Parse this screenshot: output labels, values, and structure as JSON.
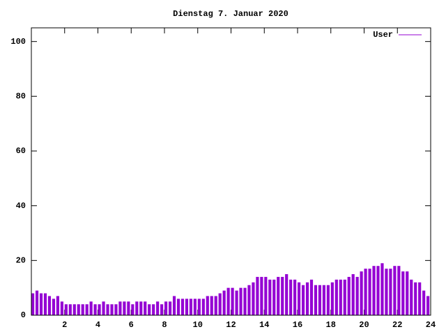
{
  "chart_data": {
    "type": "bar",
    "title": "Dienstag 7. Januar 2020",
    "x": [
      0,
      0.25,
      0.5,
      0.75,
      1,
      1.25,
      1.5,
      1.75,
      2,
      2.25,
      2.5,
      2.75,
      3,
      3.25,
      3.5,
      3.75,
      4,
      4.25,
      4.5,
      4.75,
      5,
      5.25,
      5.5,
      5.75,
      6,
      6.25,
      6.5,
      6.75,
      7,
      7.25,
      7.5,
      7.75,
      8,
      8.25,
      8.5,
      8.75,
      9,
      9.25,
      9.5,
      9.75,
      10,
      10.25,
      10.5,
      10.75,
      11,
      11.25,
      11.5,
      11.75,
      12,
      12.25,
      12.5,
      12.75,
      13,
      13.25,
      13.5,
      13.75,
      14,
      14.25,
      14.5,
      14.75,
      15,
      15.25,
      15.5,
      15.75,
      16,
      16.25,
      16.5,
      16.75,
      17,
      17.25,
      17.5,
      17.75,
      18,
      18.25,
      18.5,
      18.75,
      19,
      19.25,
      19.5,
      19.75,
      20,
      20.25,
      20.5,
      20.75,
      21,
      21.25,
      21.5,
      21.75,
      22,
      22.25,
      22.5,
      22.75,
      23,
      23.25,
      23.5,
      23.75
    ],
    "series": [
      {
        "name": "User",
        "color": "#9400d3",
        "values": [
          8,
          9,
          8,
          8,
          7,
          6,
          7,
          5,
          4,
          4,
          4,
          4,
          4,
          4,
          5,
          4,
          4,
          5,
          4,
          4,
          4,
          5,
          5,
          5,
          4,
          5,
          5,
          5,
          4,
          4,
          5,
          4,
          5,
          5,
          7,
          6,
          6,
          6,
          6,
          6,
          6,
          6,
          7,
          7,
          7,
          8,
          9,
          10,
          10,
          9,
          10,
          10,
          11,
          12,
          14,
          14,
          14,
          13,
          13,
          14,
          14,
          15,
          13,
          13,
          12,
          11,
          12,
          13,
          11,
          11,
          11,
          11,
          12,
          13,
          13,
          13,
          14,
          15,
          14,
          16,
          17,
          17,
          18,
          18,
          19,
          17,
          17,
          18,
          18,
          16,
          16,
          13,
          12,
          12,
          9,
          7
        ]
      }
    ],
    "xlim": [
      0,
      24
    ],
    "xticks": [
      2,
      4,
      6,
      8,
      10,
      12,
      14,
      16,
      18,
      20,
      22,
      24
    ],
    "ylim": [
      0,
      105
    ],
    "yticks": [
      0,
      20,
      40,
      60,
      80,
      100
    ],
    "legend": "top-right"
  }
}
